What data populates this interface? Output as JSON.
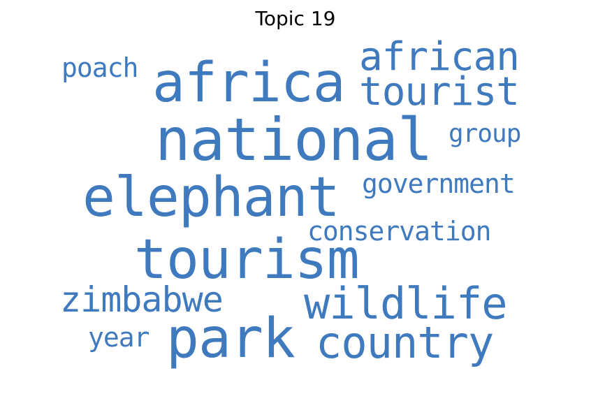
{
  "title": "Topic 19",
  "colors": {
    "word": "#3f7abf",
    "title": "#000000",
    "background": "#ffffff"
  },
  "words": [
    {
      "text": "national"
    },
    {
      "text": "elephant"
    },
    {
      "text": "tourism"
    },
    {
      "text": "africa"
    },
    {
      "text": "park"
    },
    {
      "text": "wildlife"
    },
    {
      "text": "country"
    },
    {
      "text": "african"
    },
    {
      "text": "tourist"
    },
    {
      "text": "zimbabwe"
    },
    {
      "text": "government"
    },
    {
      "text": "conservation"
    },
    {
      "text": "poach"
    },
    {
      "text": "group"
    },
    {
      "text": "year"
    }
  ]
}
